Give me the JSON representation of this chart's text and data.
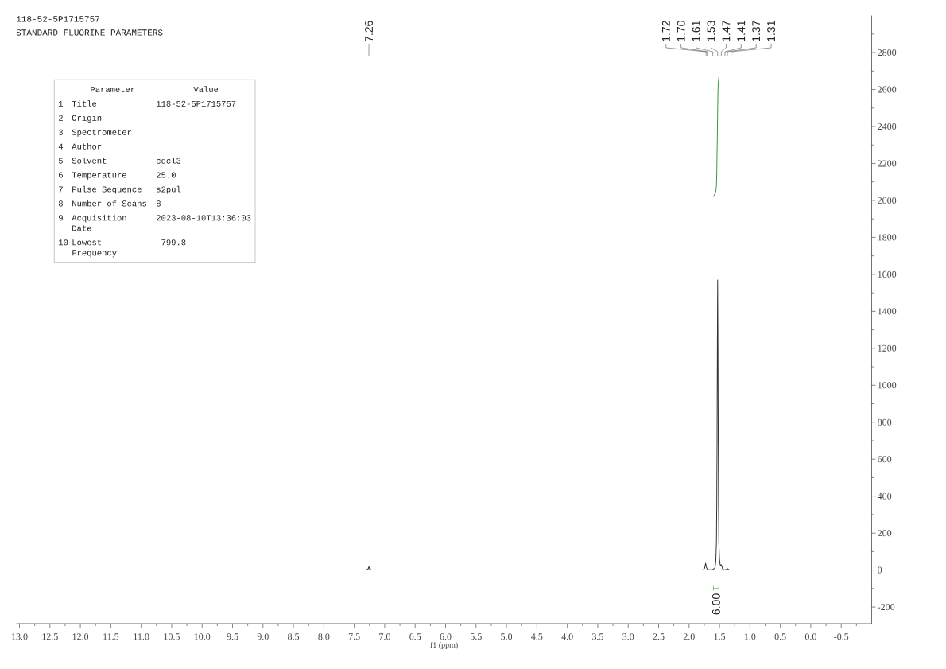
{
  "chart_data": {
    "type": "line",
    "title": "118-52-5P1715757",
    "subtitle": "STANDARD FLUORINE PARAMETERS",
    "xlabel": "f1 (ppm)",
    "series": [
      {
        "color": "#333333",
        "x": [
          13.05,
          12.0,
          10.0,
          8.0,
          7.4,
          7.3,
          7.275,
          7.265,
          7.26,
          7.255,
          7.245,
          7.22,
          7.1,
          5.0,
          3.0,
          2.0,
          1.8,
          1.76,
          1.745,
          1.735,
          1.728,
          1.72,
          1.71,
          1.7,
          1.68,
          1.65,
          1.62,
          1.6,
          1.58,
          1.57,
          1.56,
          1.55,
          1.545,
          1.54,
          1.535,
          1.53,
          1.525,
          1.52,
          1.515,
          1.51,
          1.5,
          1.49,
          1.48,
          1.47,
          1.46,
          1.45,
          1.43,
          1.4,
          1.38,
          1.37,
          1.36,
          1.34,
          1.31,
          1.28,
          1.0,
          0.0,
          -0.94
        ],
        "values": [
          0,
          0,
          0,
          0,
          0,
          2,
          5,
          12,
          20,
          12,
          5,
          2,
          0,
          0,
          0,
          0,
          0,
          3,
          10,
          25,
          37,
          25,
          10,
          5,
          3,
          2,
          3,
          5,
          10,
          20,
          50,
          150,
          350,
          700,
          1200,
          1570,
          1200,
          700,
          350,
          150,
          60,
          30,
          25,
          29,
          20,
          8,
          3,
          2,
          5,
          8,
          5,
          2,
          1,
          0,
          0,
          0,
          0
        ]
      },
      {
        "color": "#3a9a3a",
        "x": [
          1.6,
          1.59,
          1.575,
          1.56,
          1.55,
          1.545,
          1.54,
          1.535,
          1.53,
          1.525,
          1.52,
          1.51
        ],
        "values": [
          2020,
          2026,
          2036,
          2050,
          2080,
          2140,
          2250,
          2350,
          2480,
          2590,
          2640,
          2667
        ]
      }
    ],
    "xlim": [
      13.05,
      -1.0
    ],
    "xticks": [
      {
        "value": 13,
        "label": "13.0"
      },
      {
        "value": 12.75,
        "label": null
      },
      12.5,
      {
        "value": 12.25,
        "label": null
      },
      {
        "value": 12,
        "label": "12.0"
      },
      {
        "value": 11.75,
        "label": null
      },
      11.5,
      {
        "value": 11.25,
        "label": null
      },
      {
        "value": 11,
        "label": "11.0"
      },
      {
        "value": 10.75,
        "label": null
      },
      10.5,
      {
        "value": 10.25,
        "label": null
      },
      {
        "value": 10,
        "label": "10.0"
      },
      {
        "value": 9.75,
        "label": null
      },
      9.5,
      {
        "value": 9.25,
        "label": null
      },
      {
        "value": 9,
        "label": "9.0"
      },
      {
        "value": 8.75,
        "label": null
      },
      8.5,
      {
        "value": 8.25,
        "label": null
      },
      {
        "value": 8,
        "label": "8.0"
      },
      {
        "value": 7.75,
        "label": null
      },
      7.5,
      {
        "value": 7.25,
        "label": null
      },
      {
        "value": 7,
        "label": "7.0"
      },
      {
        "value": 6.75,
        "label": null
      },
      6.5,
      {
        "value": 6.25,
        "label": null
      },
      {
        "value": 6,
        "label": "6.0"
      },
      {
        "value": 5.75,
        "label": null
      },
      5.5,
      {
        "value": 5.25,
        "label": null
      },
      {
        "value": 5,
        "label": "5.0"
      },
      {
        "value": 4.75,
        "label": null
      },
      4.5,
      {
        "value": 4.25,
        "label": null
      },
      {
        "value": 4,
        "label": "4.0"
      },
      {
        "value": 3.75,
        "label": null
      },
      3.5,
      {
        "value": 3.25,
        "label": null
      },
      {
        "value": 3,
        "label": "3.0"
      },
      {
        "value": 2.75,
        "label": null
      },
      2.5,
      {
        "value": 2.25,
        "label": null
      },
      {
        "value": 2,
        "label": "2.0"
      },
      {
        "value": 1.75,
        "label": null
      },
      1.5,
      {
        "value": 1.25,
        "label": null
      },
      {
        "value": 1,
        "label": "1.0"
      },
      {
        "value": 0.75,
        "label": null
      },
      0.5,
      {
        "value": 0.25,
        "label": null
      },
      {
        "value": 0,
        "label": "0.0"
      },
      {
        "value": -0.25,
        "label": null
      },
      -0.5,
      {
        "value": -0.75,
        "label": null
      }
    ],
    "ylim": [
      -290,
      3000
    ],
    "yticks": [
      -200,
      {
        "value": -100,
        "label": null
      },
      0,
      {
        "value": 100,
        "label": null
      },
      200,
      {
        "value": 300,
        "label": null
      },
      400,
      {
        "value": 500,
        "label": null
      },
      600,
      {
        "value": 700,
        "label": null
      },
      800,
      {
        "value": 900,
        "label": null
      },
      1000,
      {
        "value": 1100,
        "label": null
      },
      1200,
      {
        "value": 1300,
        "label": null
      },
      1400,
      {
        "value": 1500,
        "label": null
      },
      1600,
      {
        "value": 1700,
        "label": null
      },
      1800,
      {
        "value": 1900,
        "label": null
      },
      2000,
      {
        "value": 2100,
        "label": null
      },
      2200,
      {
        "value": 2300,
        "label": null
      },
      2400,
      {
        "value": 2500,
        "label": null
      },
      2600,
      {
        "value": 2700,
        "label": null
      },
      2800,
      {
        "value": 2900,
        "label": null
      }
    ],
    "annotations": [
      "Parameter",
      "Value",
      "1",
      "Title",
      "118-52-5P1715757",
      "2",
      "Origin",
      "3",
      "Spectrometer",
      "4",
      "Author",
      "5",
      "Solvent",
      "cdcl3",
      "6",
      "Temperature",
      "25.0",
      "7",
      "Pulse Sequence",
      "s2pul",
      "8",
      "Number of Scans",
      "8",
      "9",
      "Acquisition Date",
      "2023-08-10T13:36:03",
      "10",
      "Lowest Frequency",
      "-799.8",
      "6.00",
      {
        "text": "7.26",
        "x": 7.26
      },
      {
        "text": "1.72",
        "x": 1.72
      },
      {
        "text": "1.70",
        "x": 1.7
      },
      {
        "text": "1.61",
        "x": 1.61
      },
      {
        "text": "1.53",
        "x": 1.53
      },
      {
        "text": "1.47",
        "x": 1.47
      },
      {
        "text": "1.41",
        "x": 1.41
      },
      {
        "text": "1.37",
        "x": 1.37
      },
      {
        "text": "1.31",
        "x": 1.31
      }
    ]
  }
}
